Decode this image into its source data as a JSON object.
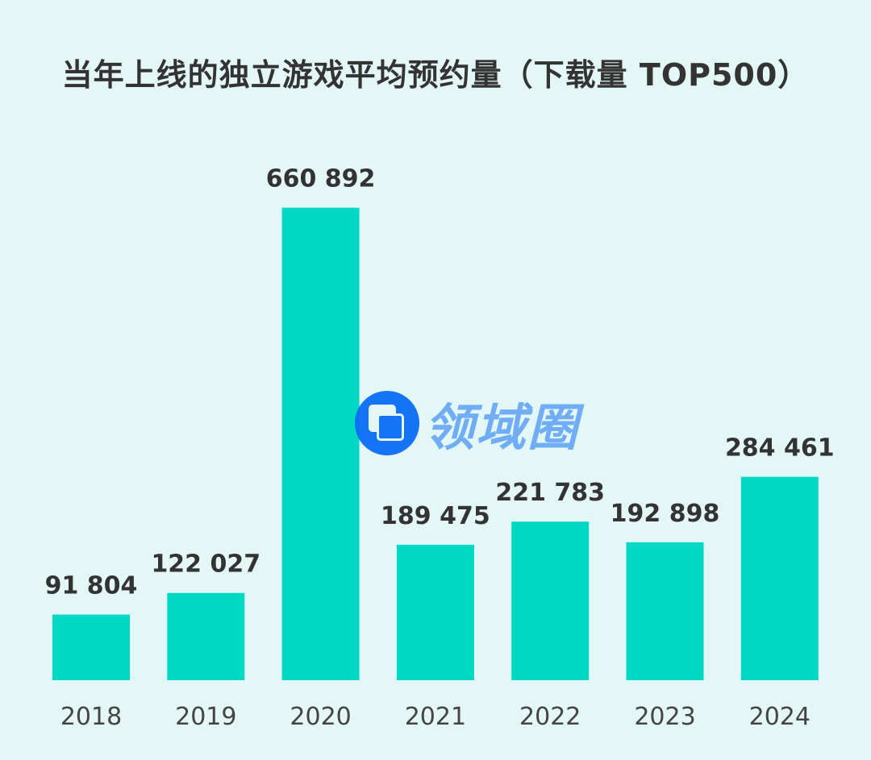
{
  "chart_data": {
    "type": "bar",
    "title": "当年上线的独立游戏平均预约量（下载量 TOP500）",
    "categories": [
      "2018",
      "2019",
      "2020",
      "2021",
      "2022",
      "2023",
      "2024"
    ],
    "values": [
      91804,
      122027,
      660892,
      189475,
      221783,
      192898,
      284461
    ],
    "value_labels": [
      "91 804",
      "122 027",
      "660 892",
      "189 475",
      "221 783",
      "192 898",
      "284 461"
    ],
    "xlabel": "",
    "ylabel": "",
    "ylim": [
      0,
      700000
    ],
    "grid": false,
    "bar_color": "#00d8c6"
  },
  "watermark": {
    "text": "领域圈",
    "color": "#6aaaf5",
    "logo_color": "#0a6cf5"
  }
}
